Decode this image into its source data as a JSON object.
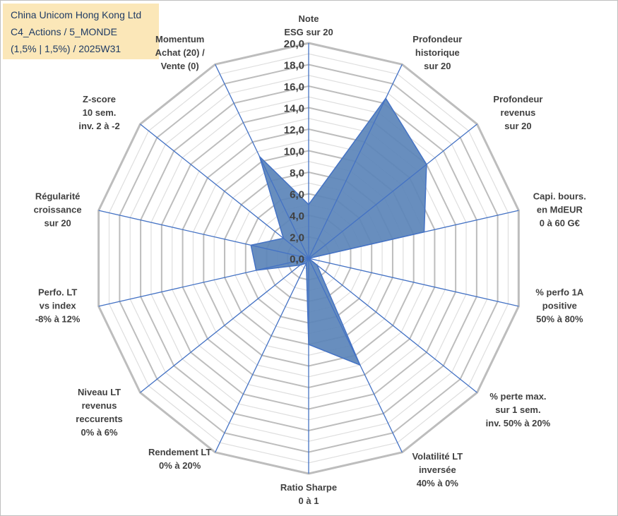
{
  "title": {
    "lines": [
      "China Unicom Hong Kong Ltd",
      "C4_Actions / 5_MONDE",
      "(1,5% | 1,5%) / 2025W31"
    ]
  },
  "colors": {
    "fill": "#5b84b8",
    "stroke": "#4472c4",
    "grid": "#c8c8c8",
    "axis": "#4472c4",
    "title_bg": "#fbe7b8",
    "title_text": "#1f3b64"
  },
  "chart_data": {
    "type": "radar",
    "grid": true,
    "rlim": [
      0,
      20
    ],
    "ticks": [
      "0,0",
      "2,0",
      "4,0",
      "6,0",
      "8,0",
      "10,0",
      "12,0",
      "14,0",
      "16,0",
      "18,0",
      "20,0"
    ],
    "axes": [
      {
        "label": [
          "Note",
          "ESG sur 20"
        ],
        "value": 5.0
      },
      {
        "label": [
          "Profondeur",
          "historique",
          "sur 20"
        ],
        "value": 16.5
      },
      {
        "label": [
          "Profondeur",
          "revenus",
          "sur 20"
        ],
        "value": 14.0
      },
      {
        "label": [
          "Capi. bours.",
          "en MdEUR",
          "0 à 60 G€"
        ],
        "value": 11.0
      },
      {
        "label": [
          "% perfo 1A",
          "positive",
          "50% à 80%"
        ],
        "value": 0.0
      },
      {
        "label": [
          "% perte max.",
          "sur 1 sem.",
          "inv. 50% à 20%"
        ],
        "value": 1.0
      },
      {
        "label": [
          "Volatilité LT",
          "inversée",
          "40% à 0%"
        ],
        "value": 11.0
      },
      {
        "label": [
          "Ratio Sharpe",
          "0 à 1"
        ],
        "value": 8.0
      },
      {
        "label": [
          "Rendement LT",
          "0% à 20%"
        ],
        "value": 0.5
      },
      {
        "label": [
          "Niveau LT",
          "revenus",
          "reccurents",
          "0% à 6%"
        ],
        "value": 1.0
      },
      {
        "label": [
          "Perfo. LT",
          "vs index",
          "-8% à 12%"
        ],
        "value": 5.0
      },
      {
        "label": [
          "Régularité",
          "croissance",
          "sur 20"
        ],
        "value": 5.5
      },
      {
        "label": [
          "Z-score",
          "10 sem.",
          "inv. 2 à -2"
        ],
        "value": 3.0
      },
      {
        "label": [
          "Momentum",
          "Achat (20) /",
          "Vente (0)"
        ],
        "value": 10.5
      }
    ]
  }
}
